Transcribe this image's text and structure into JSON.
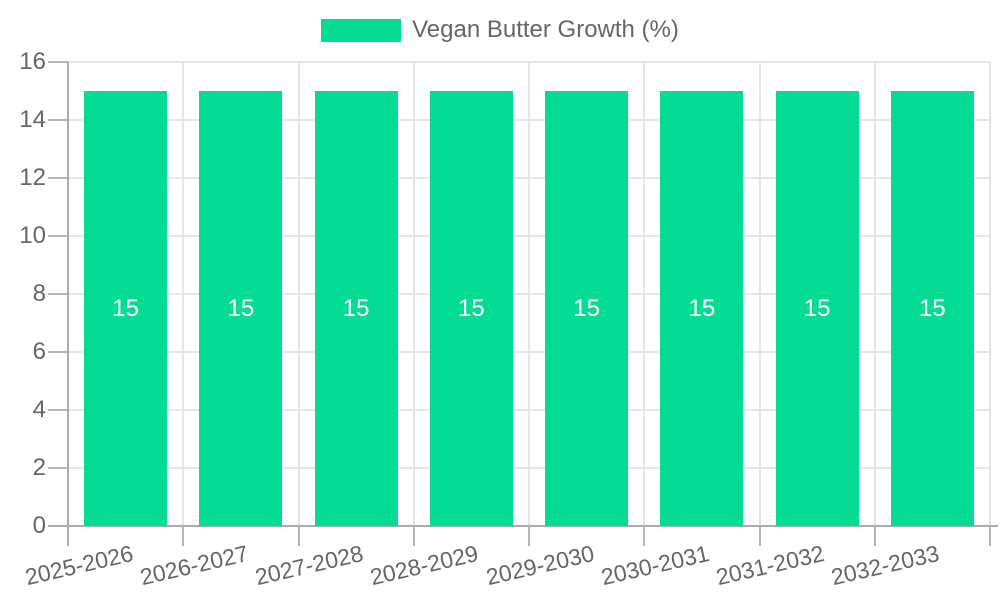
{
  "chart_data": {
    "type": "bar",
    "title": "",
    "categories": [
      "2025-2026",
      "2026-2027",
      "2027-2028",
      "2028-2029",
      "2029-2030",
      "2030-2031",
      "2031-2032",
      "2032-2033"
    ],
    "series": [
      {
        "name": "Vegan Butter Growth (%)",
        "color": "#04DC96",
        "values": [
          15,
          15,
          15,
          15,
          15,
          15,
          15,
          15
        ]
      }
    ],
    "xlabel": "",
    "ylabel": "",
    "ylim": [
      0,
      16
    ],
    "yticks": [
      0,
      2,
      4,
      6,
      8,
      10,
      12,
      14,
      16
    ],
    "grid": true,
    "legend_position": "top",
    "data_labels": {
      "show": true,
      "color": "#ffffff",
      "position": "center"
    },
    "colors": {
      "bar": "#04DC96",
      "grid": "#e6e6e6",
      "axis": "#ababab",
      "tick": "#b5b5b5",
      "label_text": "#666666"
    }
  }
}
